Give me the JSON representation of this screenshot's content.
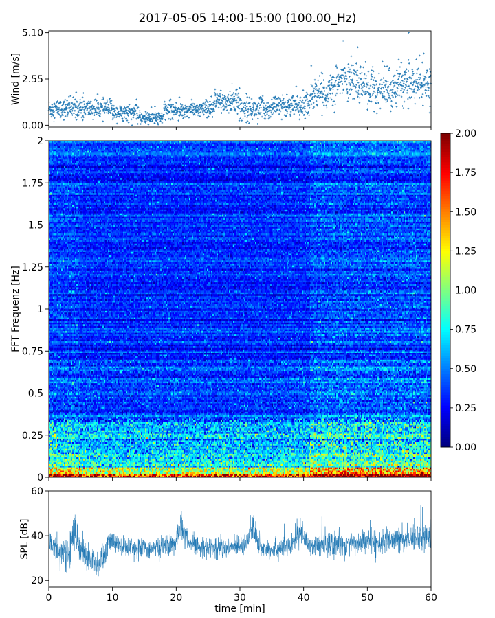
{
  "title": "2017-05-05 14:00-15:00 (100.00_Hz)",
  "chart_data": [
    {
      "type": "scatter",
      "name": "wind",
      "ylabel": "Wind [m/s]",
      "xlim": [
        0,
        60
      ],
      "ylim": [
        -0.1,
        5.2
      ],
      "yticks": [
        0.0,
        2.55,
        5.1
      ],
      "ytick_labels": [
        "0.00",
        "2.55",
        "5.10"
      ],
      "marker": "+",
      "color": "#1f77b4",
      "segments": [
        {
          "x0": 0,
          "x1": 10,
          "mean": 0.9,
          "spread": 0.45
        },
        {
          "x0": 10,
          "x1": 14,
          "mean": 0.7,
          "spread": 0.35
        },
        {
          "x0": 14,
          "x1": 18,
          "mean": 0.4,
          "spread": 0.3
        },
        {
          "x0": 18,
          "x1": 26,
          "mean": 0.85,
          "spread": 0.35
        },
        {
          "x0": 26,
          "x1": 30,
          "mean": 1.3,
          "spread": 0.6
        },
        {
          "x0": 30,
          "x1": 35,
          "mean": 0.9,
          "spread": 0.5
        },
        {
          "x0": 35,
          "x1": 41,
          "mean": 1.05,
          "spread": 0.5
        },
        {
          "x0": 41,
          "x1": 45,
          "mean": 1.8,
          "spread": 0.7
        },
        {
          "x0": 45,
          "x1": 50,
          "mean": 2.4,
          "spread": 0.9
        },
        {
          "x0": 50,
          "x1": 54,
          "mean": 1.9,
          "spread": 0.8
        },
        {
          "x0": 54,
          "x1": 60,
          "mean": 2.2,
          "spread": 0.8
        }
      ],
      "peaks": [
        {
          "x": 56.5,
          "y": 5.1
        },
        {
          "x": 46.2,
          "y": 4.65
        },
        {
          "x": 48.5,
          "y": 4.3
        }
      ]
    },
    {
      "type": "heatmap",
      "name": "spectrogram",
      "ylabel": "FFT Frequenz [Hz]",
      "xlim": [
        0,
        60
      ],
      "ylim": [
        0,
        2
      ],
      "yticks": [
        0,
        0.25,
        0.5,
        0.75,
        1,
        1.25,
        1.5,
        1.75,
        2
      ],
      "ytick_labels": [
        "0",
        "0.25",
        "0.5",
        "0.75",
        "1",
        "1.25",
        "1.5",
        "1.75",
        "2"
      ],
      "colormap": "jet",
      "colorbar": {
        "min": 0.0,
        "max": 2.0,
        "ticks": [
          0.0,
          0.25,
          0.5,
          0.75,
          1.0,
          1.25,
          1.5,
          1.75,
          2.0
        ],
        "tick_labels": [
          "0.00",
          "0.25",
          "0.50",
          "0.75",
          "1.00",
          "1.25",
          "1.50",
          "1.75",
          "2.00"
        ]
      },
      "value_model": "high energy below 0.05 Hz (values up to 2.0), elevated 0.05-0.35 Hz (about 0.5-1.0), background above 0.5 Hz about 0.2-0.35"
    },
    {
      "type": "line",
      "name": "spl",
      "ylabel": "SPL [dB]",
      "xlabel": "time [min]",
      "xlim": [
        0,
        60
      ],
      "ylim": [
        17,
        60
      ],
      "yticks": [
        20,
        40,
        60
      ],
      "ytick_labels": [
        "20",
        "40",
        "60"
      ],
      "xticks": [
        0,
        10,
        20,
        30,
        40,
        50,
        60
      ],
      "xtick_labels": [
        "0",
        "10",
        "20",
        "30",
        "40",
        "50",
        "60"
      ],
      "color": "#1f77b4",
      "envelope": {
        "x": [
          0,
          1.5,
          3,
          4,
          5,
          6,
          7,
          7.5,
          8,
          9,
          9.5,
          10,
          12,
          15,
          18,
          20,
          20.7,
          22,
          24,
          28,
          31,
          32,
          33,
          35,
          38,
          39.5,
          41,
          45,
          50,
          55,
          58,
          60
        ],
        "mid": [
          38,
          33,
          30,
          42,
          34,
          31,
          28,
          26,
          28,
          32,
          38,
          37,
          35,
          34,
          35,
          37,
          45,
          36,
          35,
          34,
          37,
          44,
          35,
          34,
          35,
          42,
          35,
          36,
          37,
          38,
          40,
          39
        ],
        "spread": [
          5,
          6,
          6,
          8,
          6,
          6,
          7,
          6,
          6,
          5,
          5,
          4,
          4,
          4,
          4,
          4,
          6,
          4,
          4,
          4,
          4,
          6,
          4,
          4,
          4,
          5,
          4,
          5,
          5,
          5,
          6,
          5
        ]
      }
    }
  ]
}
